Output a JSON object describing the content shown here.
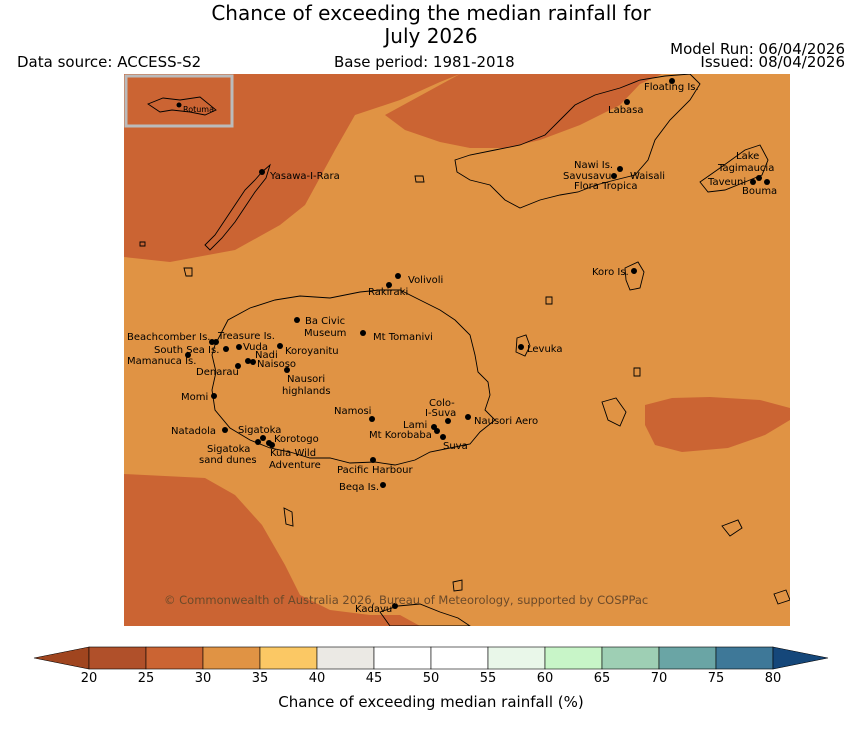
{
  "title": {
    "line1": "Chance of exceeding the median rainfall for",
    "line2": "July 2026"
  },
  "header": {
    "data_source": "Data source: ACCESS-S2",
    "base_period": "Base period: 1981-2018",
    "model_run": "Model Run: 06/04/2026",
    "issued": "Issued: 08/04/2026"
  },
  "inset": {
    "label": "Rotuma"
  },
  "places": {
    "floating": "Floating Is.",
    "labasa": "Labasa",
    "yasawa": "Yasawa-I-Rara",
    "nawi": "Nawi Is.",
    "savusavu": "Savusavu",
    "waisali": "Waisali",
    "flora": "Flora Tropica",
    "lake_tag_1": "Lake",
    "lake_tag_2": "Tagimaucia",
    "taveuni": "Taveuni",
    "bouma": "Bouma",
    "koro": "Koro Is.",
    "volivoli": "Volivoli",
    "rakiraki": "Rakiraki",
    "beachcomber": "Beachcomber Is.",
    "treasure": "Treasure Is.",
    "southsea": "South Sea Is.",
    "vuda": "Vuda",
    "mamanuca": "Mamanuca Is.",
    "nadi": "Nadi",
    "naisoso": "Naisoso",
    "denarau": "Denarau",
    "bacivic_1": "Ba Civic",
    "bacivic_2": "Museum",
    "tomanivi": "Mt Tomanivi",
    "koroyanitu": "Koroyanitu",
    "nausori_hl_1": "Nausori",
    "nausori_hl_2": "highlands",
    "levuka": "Levuka",
    "momi": "Momi",
    "namosi": "Namosi",
    "colo_1": "Colo-",
    "colo_2": "I-Suva",
    "natadola": "Natadola",
    "sigatoka": "Sigatoka",
    "lami": "Lami",
    "nausori_aero": "Nausori Aero",
    "korobaba": "Mt Korobaba",
    "korotogo": "Korotogo",
    "suva": "Suva",
    "sig_dunes_1": "Sigatoka",
    "sig_dunes_2": "sand dunes",
    "kula_1": "Kula Wild",
    "kula_2": "Adventure",
    "pacific_harbour": "Pacific Harbour",
    "beqa": "Beqa Is.",
    "kadavu": "Kadavu"
  },
  "copyright": "© Commonwealth of Australia 2026, Bureau of Meteorology, supported by COSPPac",
  "colorbar": {
    "label": "Chance of exceeding median rainfall (%)",
    "ticks": [
      "20",
      "25",
      "30",
      "35",
      "40",
      "45",
      "50",
      "55",
      "60",
      "65",
      "70",
      "75",
      "80"
    ],
    "colors": {
      "under": "#a0451f",
      "bins": [
        "#b0502a",
        "#cb6433",
        "#e09344",
        "#fbc864",
        "#ebe9e4",
        "#ffffff",
        "#ffffff",
        "#e9f7e9",
        "#c8f5c8",
        "#9ecfb4",
        "#6aa5a5",
        "#3e7898"
      ],
      "over": "#15477a"
    }
  },
  "map_colors": {
    "bin_25_30": "#cb6433",
    "bin_30_35": "#e09344"
  }
}
